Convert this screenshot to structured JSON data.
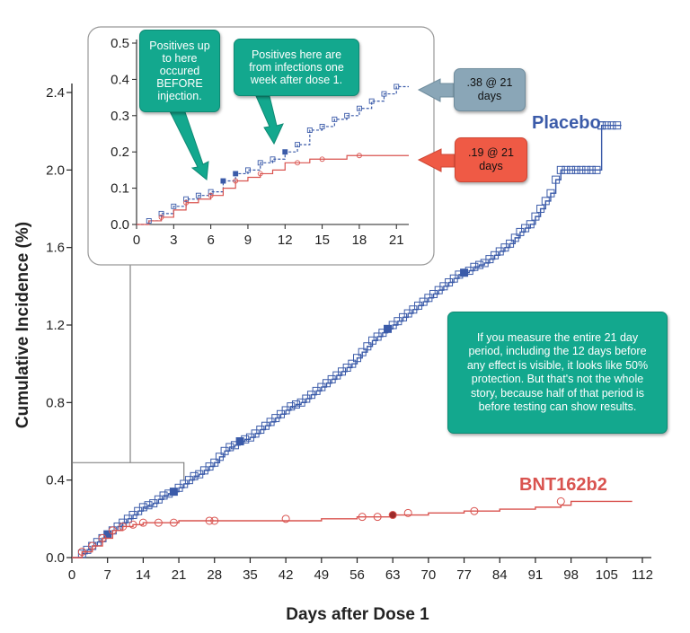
{
  "chart_data": [
    {
      "type": "line",
      "xlabel": "Days after Dose 1",
      "ylabel": "Cumulative Incidence (%)",
      "xlim": [
        0,
        112
      ],
      "ylim": [
        0.0,
        2.4
      ],
      "xticks": [
        "0",
        "7",
        "14",
        "21",
        "28",
        "35",
        "42",
        "49",
        "56",
        "63",
        "70",
        "77",
        "84",
        "91",
        "98",
        "105",
        "112"
      ],
      "yticks": [
        "0.0",
        "0.4",
        "0.8",
        "1.2",
        "1.6",
        "2.0",
        "2.4"
      ],
      "grid": false,
      "series": [
        {
          "name": "Placebo",
          "color": "#3b5ba9",
          "x": [
            0,
            2,
            3,
            4,
            5,
            6,
            7,
            8,
            9,
            10,
            11,
            12,
            13,
            14,
            15,
            16,
            17,
            18,
            19,
            20,
            21,
            22,
            23,
            24,
            25,
            26,
            27,
            28,
            29,
            30,
            31,
            32,
            33,
            34,
            35,
            36,
            37,
            38,
            39,
            40,
            41,
            42,
            43,
            44,
            45,
            46,
            47,
            48,
            49,
            50,
            51,
            52,
            53,
            54,
            55,
            56,
            57,
            58,
            59,
            60,
            61,
            62,
            63,
            64,
            65,
            66,
            67,
            68,
            69,
            70,
            71,
            72,
            73,
            74,
            75,
            76,
            77,
            78,
            79,
            80,
            81,
            82,
            83,
            84,
            85,
            86,
            87,
            88,
            89,
            90,
            91,
            92,
            93,
            94,
            95,
            96,
            97,
            98,
            99,
            100,
            101,
            102,
            103,
            104,
            105,
            106,
            107,
            108
          ],
          "y": [
            0.0,
            0.02,
            0.04,
            0.06,
            0.08,
            0.1,
            0.12,
            0.14,
            0.16,
            0.18,
            0.2,
            0.22,
            0.24,
            0.26,
            0.27,
            0.28,
            0.3,
            0.32,
            0.33,
            0.34,
            0.36,
            0.38,
            0.4,
            0.42,
            0.43,
            0.45,
            0.47,
            0.49,
            0.52,
            0.55,
            0.57,
            0.58,
            0.6,
            0.61,
            0.62,
            0.64,
            0.66,
            0.68,
            0.7,
            0.72,
            0.74,
            0.76,
            0.78,
            0.79,
            0.8,
            0.82,
            0.84,
            0.86,
            0.88,
            0.9,
            0.92,
            0.94,
            0.96,
            0.98,
            1.0,
            1.03,
            1.06,
            1.09,
            1.12,
            1.14,
            1.16,
            1.18,
            1.2,
            1.22,
            1.24,
            1.26,
            1.28,
            1.3,
            1.32,
            1.34,
            1.36,
            1.38,
            1.4,
            1.42,
            1.44,
            1.46,
            1.47,
            1.48,
            1.5,
            1.51,
            1.52,
            1.54,
            1.56,
            1.58,
            1.6,
            1.62,
            1.65,
            1.68,
            1.7,
            1.72,
            1.76,
            1.8,
            1.84,
            1.88,
            1.95,
            2.0,
            2.0,
            2.0,
            2.0,
            2.0,
            2.0,
            2.0,
            2.0,
            2.23,
            2.23,
            2.23,
            2.23,
            2.23
          ]
        },
        {
          "name": "BNT162b2",
          "color": "#d9534f",
          "x": [
            0,
            2,
            4,
            6,
            8,
            10,
            12,
            14,
            16,
            18,
            21,
            28,
            35,
            42,
            49,
            56,
            63,
            70,
            77,
            84,
            91,
            96,
            98,
            105,
            110
          ],
          "y": [
            0.0,
            0.03,
            0.06,
            0.1,
            0.14,
            0.16,
            0.17,
            0.18,
            0.18,
            0.18,
            0.19,
            0.19,
            0.19,
            0.19,
            0.2,
            0.21,
            0.22,
            0.23,
            0.24,
            0.25,
            0.26,
            0.27,
            0.29,
            0.29,
            0.29
          ]
        }
      ]
    },
    {
      "type": "line",
      "xlim": [
        0,
        22
      ],
      "ylim": [
        0.0,
        0.5
      ],
      "xticks": [
        "0",
        "3",
        "6",
        "9",
        "12",
        "15",
        "18",
        "21"
      ],
      "yticks": [
        "0.0",
        "0.1",
        "0.2",
        "0.3",
        "0.4",
        "0.5"
      ],
      "series": [
        {
          "name": "Placebo",
          "color": "#3b5ba9",
          "x": [
            0,
            1,
            2,
            3,
            4,
            5,
            6,
            7,
            8,
            9,
            10,
            11,
            12,
            13,
            14,
            15,
            16,
            17,
            18,
            19,
            20,
            21,
            22
          ],
          "y": [
            0.0,
            0.01,
            0.03,
            0.05,
            0.07,
            0.08,
            0.09,
            0.12,
            0.14,
            0.15,
            0.17,
            0.18,
            0.2,
            0.22,
            0.26,
            0.27,
            0.29,
            0.3,
            0.32,
            0.34,
            0.36,
            0.38,
            0.38
          ]
        },
        {
          "name": "BNT162b2",
          "color": "#d9534f",
          "x": [
            0,
            1,
            2,
            3,
            4,
            5,
            6,
            7,
            8,
            9,
            10,
            11,
            12,
            13,
            14,
            15,
            16,
            17,
            18,
            19,
            20,
            21,
            22
          ],
          "y": [
            0.0,
            0.01,
            0.02,
            0.04,
            0.06,
            0.07,
            0.08,
            0.1,
            0.12,
            0.13,
            0.14,
            0.15,
            0.17,
            0.17,
            0.18,
            0.18,
            0.18,
            0.19,
            0.19,
            0.19,
            0.19,
            0.19,
            0.19
          ]
        }
      ]
    }
  ],
  "annotations": {
    "positives_before": "Positives up to here occured BEFORE injection.",
    "positives_week": "Positives here are from infections one week after dose 1.",
    "placebo_21": ".38 @ 21 days",
    "vaccine_21": ".19 @ 21 days",
    "explanation": "If you measure the entire 21 day period, including the 12 days before any effect is visible, it looks like 50% protection.  But that's not the whole story, because half of that period is before testing can show results."
  },
  "colors": {
    "placebo": "#3b5ba9",
    "vaccine": "#d9534f",
    "teal": "#13a88e",
    "steel": "#8aa6b7",
    "red_box": "#ef5a45"
  }
}
